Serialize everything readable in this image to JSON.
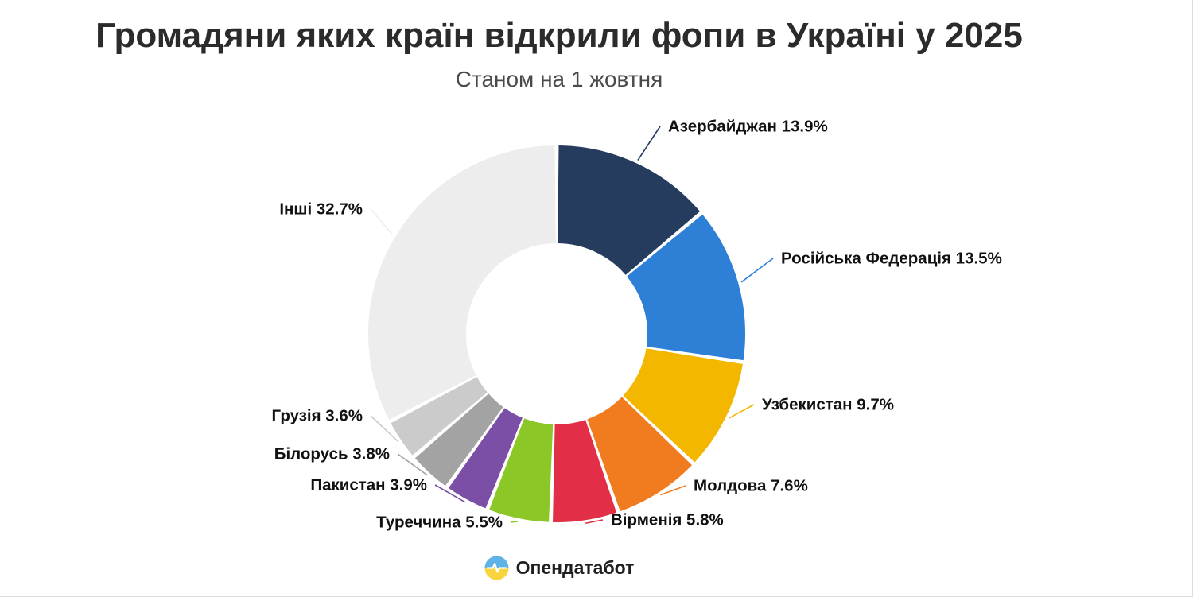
{
  "title": "Громадяни яких країн відкрили фопи в Україні у 2025",
  "subtitle": "Станом на 1 жовтня",
  "footer": {
    "brand": "Опендатабот"
  },
  "logo": {
    "name": "opendatabot-logo",
    "top_color": "#5fb2e6",
    "bottom_color": "#f8d53f",
    "pulse_color": "#ffffff"
  },
  "chart_data": {
    "type": "pie",
    "variant": "donut",
    "title": "Громадяни яких країн відкрили фопи в Україні у 2025",
    "subtitle": "Станом на 1 жовтня",
    "unit": "%",
    "direction": "clockwise",
    "start_angle_deg": 0,
    "legend": "callout-labels",
    "segments": [
      {
        "label": "Азербайджан",
        "value": 13.9,
        "color": "#263c5e"
      },
      {
        "label": "Російська Федерація",
        "value": 13.5,
        "color": "#2e7fd6"
      },
      {
        "label": "Узбекистан",
        "value": 9.7,
        "color": "#f3b700"
      },
      {
        "label": "Молдова",
        "value": 7.6,
        "color": "#f07c1f"
      },
      {
        "label": "Вірменія",
        "value": 5.8,
        "color": "#e22e46"
      },
      {
        "label": "Туреччина",
        "value": 5.5,
        "color": "#8bc727"
      },
      {
        "label": "Пакистан",
        "value": 3.9,
        "color": "#7b4fa6"
      },
      {
        "label": "Білорусь",
        "value": 3.8,
        "color": "#a3a3a3"
      },
      {
        "label": "Грузія",
        "value": 3.6,
        "color": "#cbcbcb"
      },
      {
        "label": "Інші",
        "value": 32.7,
        "color": "#ededed"
      }
    ]
  }
}
